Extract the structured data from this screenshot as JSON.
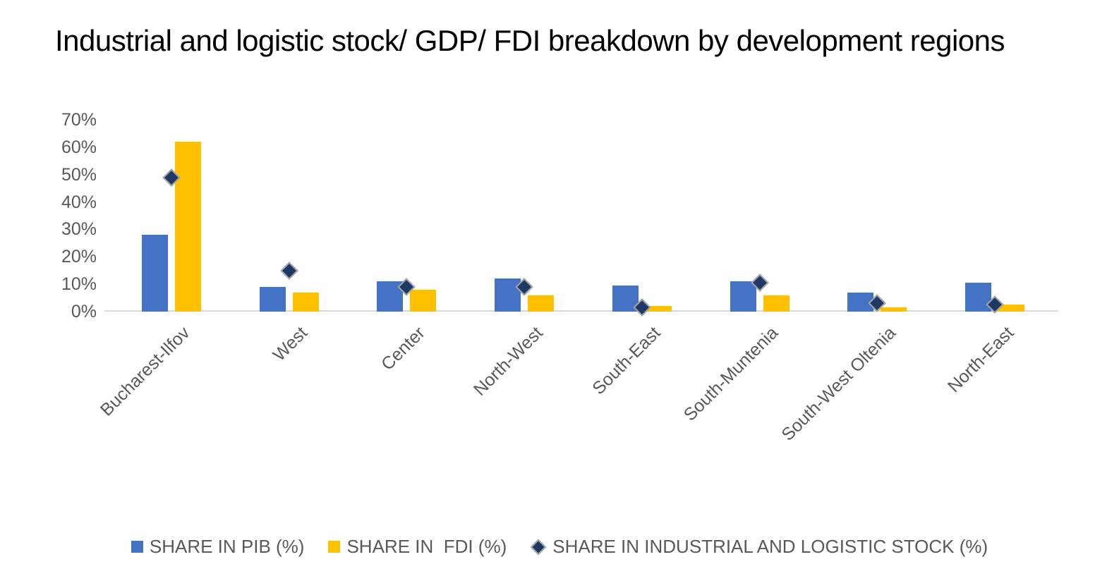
{
  "colors": {
    "pib_blue": "#4472C4",
    "fdi_yellow": "#FFC000",
    "stock_navy": "#1F3864",
    "marker_border": "#A6A6A6",
    "axis_text": "#595959",
    "axis_line": "#D9D9D9",
    "title_text": "#000000"
  },
  "legend": {
    "items": [
      {
        "label": "SHARE IN PIB (%)",
        "marker": "square",
        "color": "#4472C4"
      },
      {
        "label": "SHARE IN  FDI (%)",
        "marker": "square",
        "color": "#FFC000"
      },
      {
        "label": "SHARE IN INDUSTRIAL AND LOGISTIC STOCK (%)",
        "marker": "diamond",
        "color": "#1F3864"
      }
    ]
  },
  "chart_data": {
    "type": "bar",
    "subtype": "clustered-bars-with-diamond-scatter-overlay",
    "title": "Industrial and logistic stock/ GDP/ FDI breakdown by development regions",
    "categories": [
      "Bucharest-Ilfov",
      "West",
      "Center",
      "North-West",
      "South-East",
      "South-Muntenia",
      "South-West Oltenia",
      "North-East"
    ],
    "series": [
      {
        "name": "SHARE IN PIB (%)",
        "render": "bar",
        "color": "#4472C4",
        "values": [
          28,
          9,
          11,
          12,
          9.5,
          11,
          7,
          10.5
        ]
      },
      {
        "name": "SHARE IN  FDI (%)",
        "render": "bar",
        "color": "#FFC000",
        "values": [
          62,
          7,
          8,
          6,
          2,
          6,
          1.5,
          2.5
        ]
      },
      {
        "name": "SHARE IN INDUSTRIAL AND LOGISTIC STOCK (%)",
        "render": "diamond-marker",
        "color": "#1F3864",
        "values": [
          49,
          15,
          9,
          9,
          1.5,
          10.5,
          3,
          2.5
        ]
      }
    ],
    "xlabel": "",
    "ylabel": "",
    "yticks": [
      "0%",
      "10%",
      "20%",
      "30%",
      "40%",
      "50%",
      "60%",
      "70%"
    ],
    "ylim": [
      0,
      70
    ],
    "grid": false,
    "legend_position": "bottom"
  }
}
